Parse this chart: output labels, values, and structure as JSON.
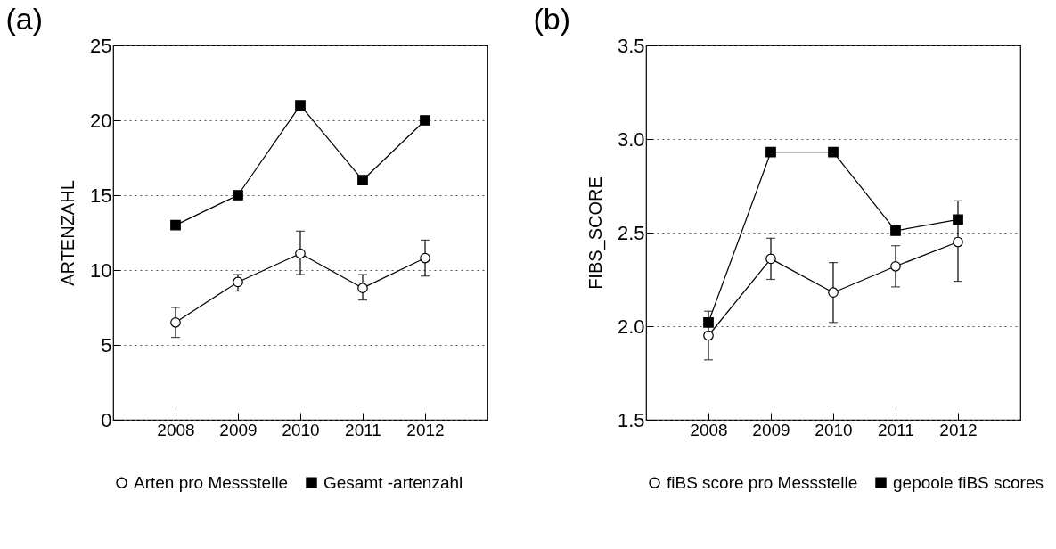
{
  "chart_data": [
    {
      "type": "line",
      "title": "(a)",
      "ylabel": "ARTENZAHL",
      "categories": [
        "2008",
        "2009",
        "2010",
        "2011",
        "2012"
      ],
      "ylim": [
        0,
        25
      ],
      "yticks": [
        0,
        5,
        10,
        15,
        20,
        25
      ],
      "grid": "y",
      "legend": "bottom",
      "series": [
        {
          "name": "Arten pro Messstelle",
          "color": "#000000",
          "marker": "circle",
          "values": [
            6.5,
            9.2,
            11.1,
            8.8,
            10.8
          ],
          "errors": [
            [
              5.5,
              7.5
            ],
            [
              8.6,
              9.7
            ],
            [
              9.7,
              12.6
            ],
            [
              8.0,
              9.7
            ],
            [
              9.6,
              12.0
            ]
          ]
        },
        {
          "name": "Gesamt -artenzahl",
          "color": "#000000",
          "marker": "square",
          "values": [
            13,
            15,
            21,
            16,
            20
          ]
        }
      ]
    },
    {
      "type": "line",
      "title": "(b)",
      "ylabel": "FIBS_SCORE",
      "categories": [
        "2008",
        "2009",
        "2010",
        "2011",
        "2012"
      ],
      "ylim": [
        1.5,
        3.5
      ],
      "yticks": [
        {
          "value": 1.5,
          "label": "1.5"
        },
        {
          "value": 2,
          "label": "2.0"
        },
        {
          "value": 2.5,
          "label": "2.5"
        },
        {
          "value": 3,
          "label": "3.0"
        },
        {
          "value": 3.5,
          "label": "3.5"
        }
      ],
      "grid": "y",
      "legend": "bottom",
      "series": [
        {
          "name": "fiBS score pro Messstelle",
          "color": "#000000",
          "marker": "circle",
          "values": [
            1.95,
            2.36,
            2.18,
            2.32,
            2.45
          ],
          "errors": [
            [
              1.82,
              2.08
            ],
            [
              2.25,
              2.47
            ],
            [
              2.02,
              2.34
            ],
            [
              2.21,
              2.43
            ],
            [
              2.24,
              2.67
            ]
          ]
        },
        {
          "name": "gepoole fiBS scores",
          "color": "#000000",
          "marker": "square",
          "values": [
            2.02,
            2.93,
            2.93,
            2.51,
            2.57
          ]
        }
      ]
    }
  ]
}
